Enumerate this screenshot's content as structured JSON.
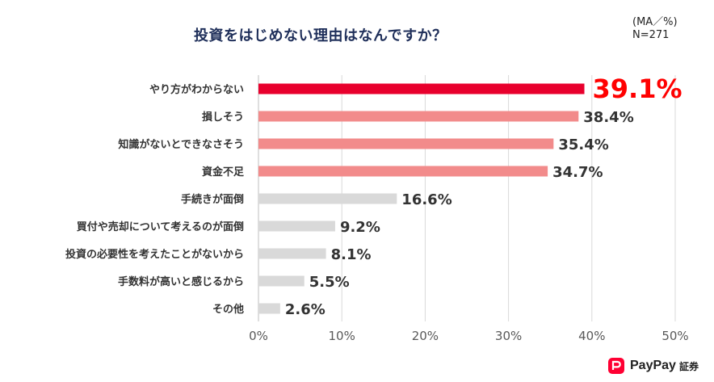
{
  "chart_data": {
    "type": "bar",
    "orientation": "horizontal",
    "title": "投資をはじめない理由はなんですか？",
    "note_line1": "(MA／%)",
    "note_line2": "N=271",
    "categories": [
      "やり方がわからない",
      "損しそう",
      "知識がないとできなさそう",
      "資金不足",
      "手続きが面倒",
      "買付や売却について考えるのが面倒",
      "投資の必要性を考えたことがないから",
      "手数料が高いと感じるから",
      "その他"
    ],
    "values": [
      39.1,
      38.4,
      35.4,
      34.7,
      16.6,
      9.2,
      8.1,
      5.5,
      2.6
    ],
    "value_labels": [
      "39.1%",
      "38.4%",
      "35.4%",
      "34.7%",
      "16.6%",
      "9.2%",
      "8.1%",
      "5.5%",
      "2.6%"
    ],
    "bar_colors": [
      "#e8002d",
      "#f28b8b",
      "#f28b8b",
      "#f28b8b",
      "#d9d9d9",
      "#d9d9d9",
      "#d9d9d9",
      "#d9d9d9",
      "#d9d9d9"
    ],
    "label_colors": [
      "#ff0000",
      "#333333",
      "#333333",
      "#333333",
      "#333333",
      "#333333",
      "#333333",
      "#333333",
      "#333333"
    ],
    "xlim": [
      0,
      50
    ],
    "xticks": [
      0,
      10,
      20,
      30,
      40,
      50
    ],
    "xtick_labels": [
      "0%",
      "10%",
      "20%",
      "30%",
      "40%",
      "50%"
    ],
    "grid": true,
    "xlabel": "",
    "ylabel": ""
  },
  "logo": {
    "brand": "PayPay",
    "sub": "証券",
    "color": "#ff0033"
  }
}
